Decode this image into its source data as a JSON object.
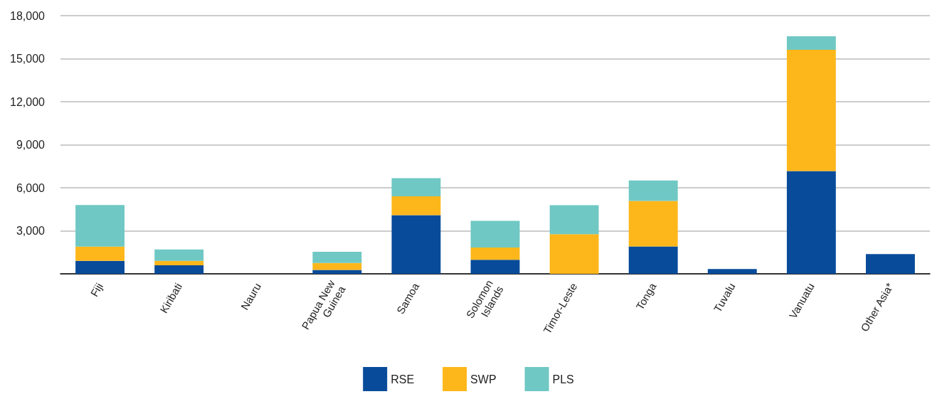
{
  "chart_data": {
    "type": "bar",
    "stacked": true,
    "categories": [
      "Fiji",
      "Kiribati",
      "Nauru",
      "Papua New\nGuinea",
      "Samoa",
      "Solomon\nIslands",
      "Timor-Leste",
      "Tonga",
      "Tuvalu",
      "Vanuatu",
      "Other Asia*"
    ],
    "series": [
      {
        "name": "RSE",
        "color": "#084b9a",
        "values": [
          900,
          600,
          0,
          270,
          4090,
          980,
          0,
          1910,
          330,
          7160,
          1370
        ]
      },
      {
        "name": "SWP",
        "color": "#fdb71b",
        "values": [
          1000,
          300,
          0,
          490,
          1310,
          850,
          2760,
          3170,
          0,
          8460,
          0
        ]
      },
      {
        "name": "PLS",
        "color": "#6fc8c3",
        "values": [
          2900,
          800,
          0,
          780,
          1270,
          1870,
          2030,
          1430,
          0,
          940,
          0
        ]
      }
    ],
    "ylim": [
      0,
      18000
    ],
    "yticks": [
      {
        "value": 0,
        "label": null
      },
      {
        "value": 3000,
        "label": "3,000"
      },
      {
        "value": 6000,
        "label": "6,000"
      },
      {
        "value": 9000,
        "label": "9,000"
      },
      {
        "value": 12000,
        "label": "12,000"
      },
      {
        "value": 15000,
        "label": "15,000"
      },
      {
        "value": 18000,
        "label": "18,000"
      }
    ],
    "grid": "y",
    "legend": "bottom"
  }
}
